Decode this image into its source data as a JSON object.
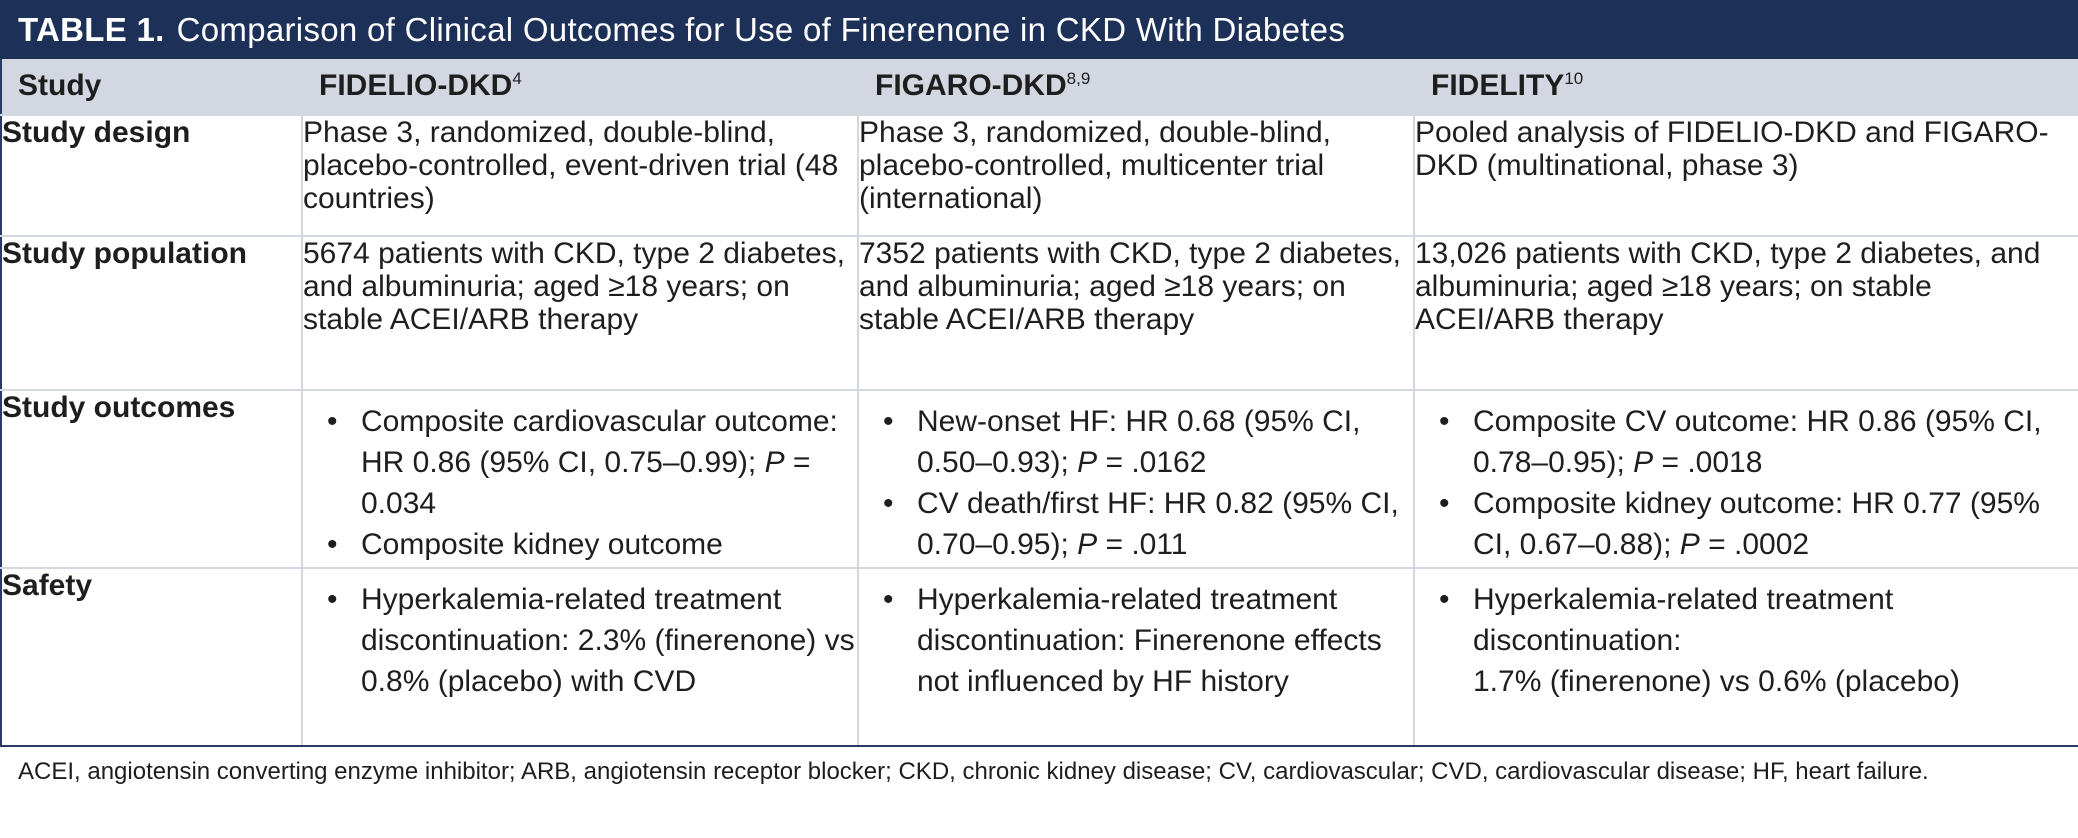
{
  "title": {
    "label": "TABLE 1.",
    "text": "Comparison of Clinical Outcomes for Use of Finerenone in CKD With Diabetes"
  },
  "header": {
    "study": "Study",
    "col1": {
      "name": "FIDELIO-DKD",
      "ref": "4"
    },
    "col2": {
      "name": "FIGARO-DKD",
      "ref": "8,9"
    },
    "col3": {
      "name": "FIDELITY",
      "ref": "10"
    }
  },
  "rows": {
    "design": {
      "label": "Study design",
      "col1": "Phase 3, randomized, double-blind, placebo-controlled, event-driven trial (48 countries)",
      "col2": "Phase 3, randomized, double-blind, placebo-controlled, multicenter trial (international)",
      "col3": "Pooled analysis of FIDELIO-DKD and FIGARO-DKD (multinational, phase 3)"
    },
    "population": {
      "label": "Study population",
      "col1": "5674 patients with CKD, type 2 diabetes, and albuminuria; aged ≥18 years; on stable ACEI/ARB therapy",
      "col2": "7352 patients with CKD, type 2 diabetes, and albuminuria; aged ≥18 years; on stable ACEI/ARB therapy",
      "col3": "13,026 patients with CKD, type 2 diabetes, and albuminuria; aged ≥18 years; on stable ACEI/ARB therapy"
    },
    "outcomes": {
      "label": "Study outcomes",
      "col1": [
        {
          "pre": "Composite cardiovascular outcome: HR 0.86 (95% CI, 0.75–0.99); ",
          "p": "P",
          "post": " = 0.034"
        },
        {
          "pre": "Composite kidney outcome",
          "p": "",
          "post": ""
        }
      ],
      "col2": [
        {
          "pre": "New-onset HF: HR 0.68 (95% CI, 0.50–0.93); ",
          "p": "P",
          "post": " = .0162"
        },
        {
          "pre": "CV death/first HF: HR 0.82 (95% CI, 0.70–0.95); ",
          "p": "P",
          "post": " = .011"
        }
      ],
      "col3": [
        {
          "pre": "Composite CV outcome: HR 0.86 (95% CI, 0.78–0.95); ",
          "p": "P",
          "post": " = .0018"
        },
        {
          "pre": "Composite kidney outcome: HR 0.77 (95% CI, 0.67–0.88); ",
          "p": "P",
          "post": " = .0002"
        }
      ]
    },
    "safety": {
      "label": "Safety",
      "col1": "Hyperkalemia-related treatment discontinuation: 2.3% (finerenone) vs 0.8% (placebo) with CVD",
      "col2": "Hyperkalemia-related treatment discontinuation: Finerenone effects not influenced by HF history",
      "col3_a": "Hyperkalemia-related treatment discontinuation:",
      "col3_b": "1.7% (finerenone) vs 0.6% (placebo)"
    }
  },
  "bullet_glyph": "•",
  "footnote": "ACEI, angiotensin converting enzyme inhibitor; ARB, angiotensin receptor blocker; CKD, chronic kidney disease; CV, cardiovascular; CVD, cardiovascular disease; HF, heart failure."
}
